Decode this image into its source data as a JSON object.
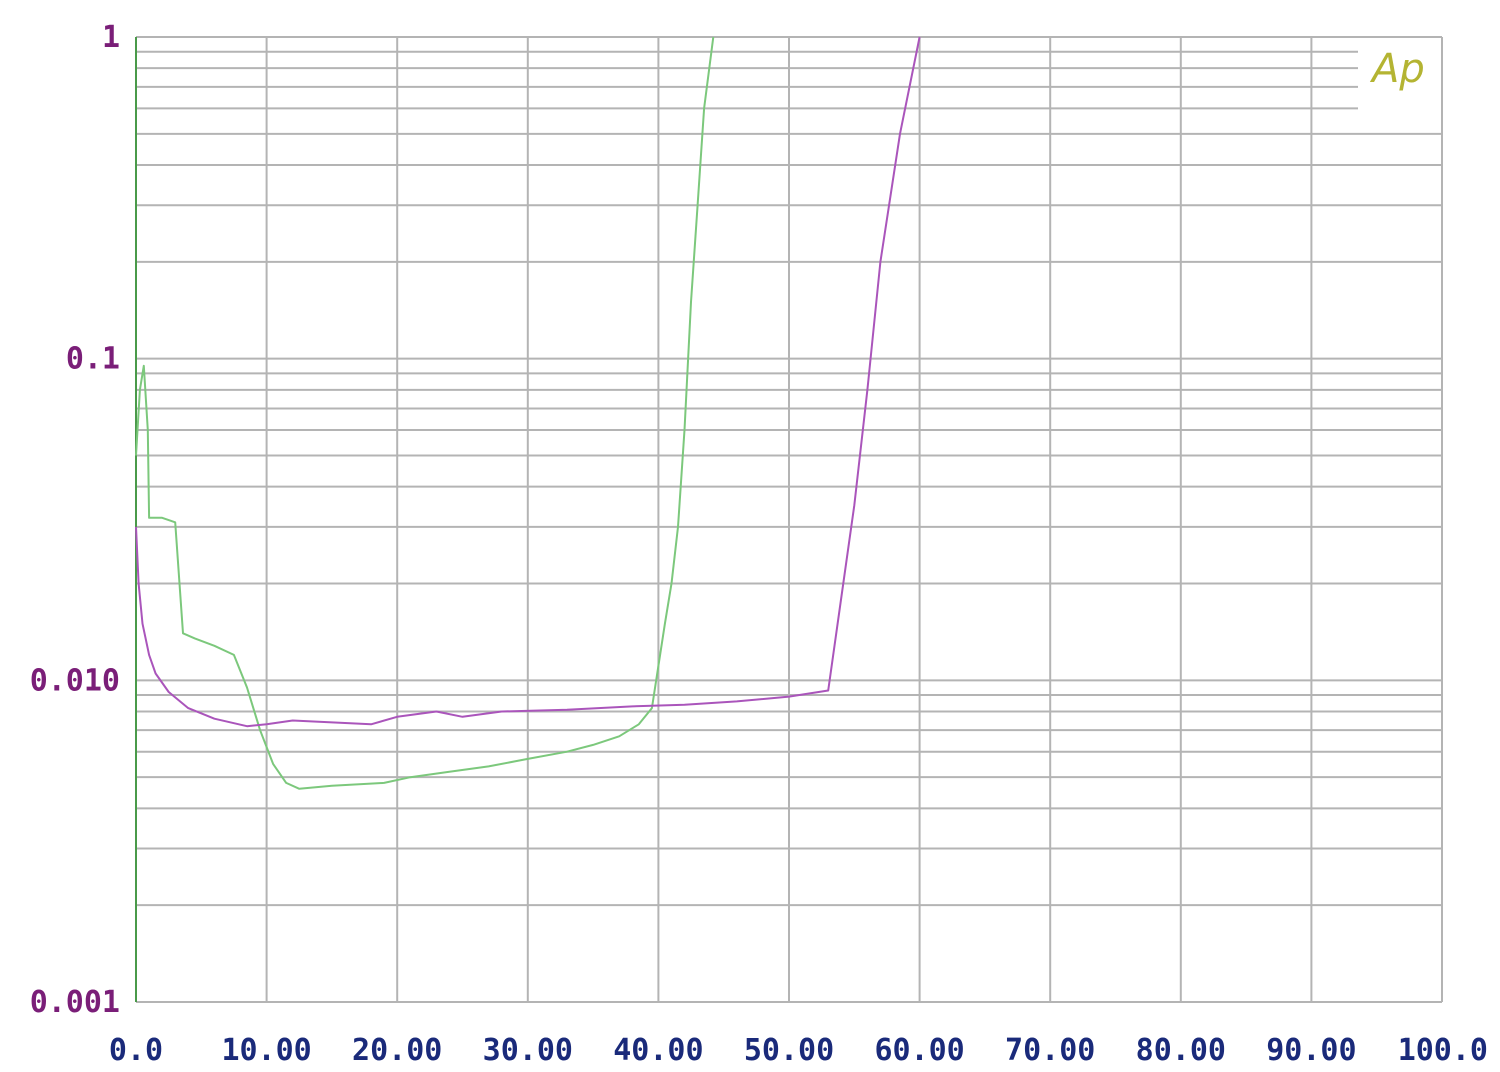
{
  "chart_data": {
    "type": "line",
    "title": "",
    "xlabel": "",
    "ylabel": "",
    "xlim": [
      0,
      100
    ],
    "ylim": [
      0.001,
      1
    ],
    "y_scale": "log",
    "grid": true,
    "x_ticks": [
      "0.0",
      "10.00",
      "20.00",
      "30.00",
      "40.00",
      "50.00",
      "60.00",
      "70.00",
      "80.00",
      "90.00",
      "100.0"
    ],
    "x_tick_values": [
      0,
      10,
      20,
      30,
      40,
      50,
      60,
      70,
      80,
      90,
      100
    ],
    "y_ticks": [
      "1",
      "0.1",
      "0.010",
      "0.001"
    ],
    "y_tick_values": [
      1,
      0.1,
      0.01,
      0.001
    ],
    "logo": "Ap",
    "colors": {
      "grid": "#b4b4b4",
      "x_tick_text": "#1a2a7a",
      "y_tick_text": "#7a1e78",
      "logo": "#b4b432",
      "axis_left": "#4a9a4a"
    },
    "series": [
      {
        "color": "#7cc87c",
        "points": [
          [
            0.0,
            0.05
          ],
          [
            0.3,
            0.08
          ],
          [
            0.6,
            0.095
          ],
          [
            0.9,
            0.06
          ],
          [
            1.0,
            0.032
          ],
          [
            2.0,
            0.032
          ],
          [
            3.0,
            0.031
          ],
          [
            3.6,
            0.014
          ],
          [
            4.5,
            0.0135
          ],
          [
            6.0,
            0.0128
          ],
          [
            7.5,
            0.012
          ],
          [
            8.5,
            0.0095
          ],
          [
            9.5,
            0.007
          ],
          [
            10.5,
            0.0055
          ],
          [
            11.5,
            0.0048
          ],
          [
            12.5,
            0.0046
          ],
          [
            15.0,
            0.0047
          ],
          [
            19.0,
            0.0048
          ],
          [
            21.0,
            0.005
          ],
          [
            24.0,
            0.0052
          ],
          [
            27.0,
            0.0054
          ],
          [
            30.0,
            0.0057
          ],
          [
            33.0,
            0.006
          ],
          [
            35.0,
            0.0063
          ],
          [
            37.0,
            0.0067
          ],
          [
            38.5,
            0.0073
          ],
          [
            39.5,
            0.0082
          ],
          [
            40.5,
            0.015
          ],
          [
            41.0,
            0.02
          ],
          [
            41.5,
            0.03
          ],
          [
            42.0,
            0.06
          ],
          [
            42.5,
            0.15
          ],
          [
            43.0,
            0.3
          ],
          [
            43.5,
            0.6
          ],
          [
            44.2,
            1.0
          ]
        ]
      },
      {
        "color": "#aa55bb",
        "points": [
          [
            0.0,
            0.03
          ],
          [
            0.2,
            0.02
          ],
          [
            0.5,
            0.015
          ],
          [
            1.0,
            0.012
          ],
          [
            1.5,
            0.0105
          ],
          [
            2.5,
            0.0092
          ],
          [
            4.0,
            0.0082
          ],
          [
            6.0,
            0.0076
          ],
          [
            8.5,
            0.0072
          ],
          [
            10.0,
            0.0073
          ],
          [
            12.0,
            0.0075
          ],
          [
            15.0,
            0.0074
          ],
          [
            18.0,
            0.0073
          ],
          [
            20.0,
            0.0077
          ],
          [
            23.0,
            0.008
          ],
          [
            25.0,
            0.0077
          ],
          [
            28.0,
            0.008
          ],
          [
            33.0,
            0.0081
          ],
          [
            38.0,
            0.0083
          ],
          [
            42.0,
            0.0084
          ],
          [
            46.0,
            0.0086
          ],
          [
            50.0,
            0.0089
          ],
          [
            53.0,
            0.0093
          ],
          [
            54.0,
            0.018
          ],
          [
            55.0,
            0.035
          ],
          [
            56.0,
            0.08
          ],
          [
            57.0,
            0.2
          ],
          [
            58.5,
            0.5
          ],
          [
            60.0,
            1.0
          ]
        ]
      }
    ]
  }
}
